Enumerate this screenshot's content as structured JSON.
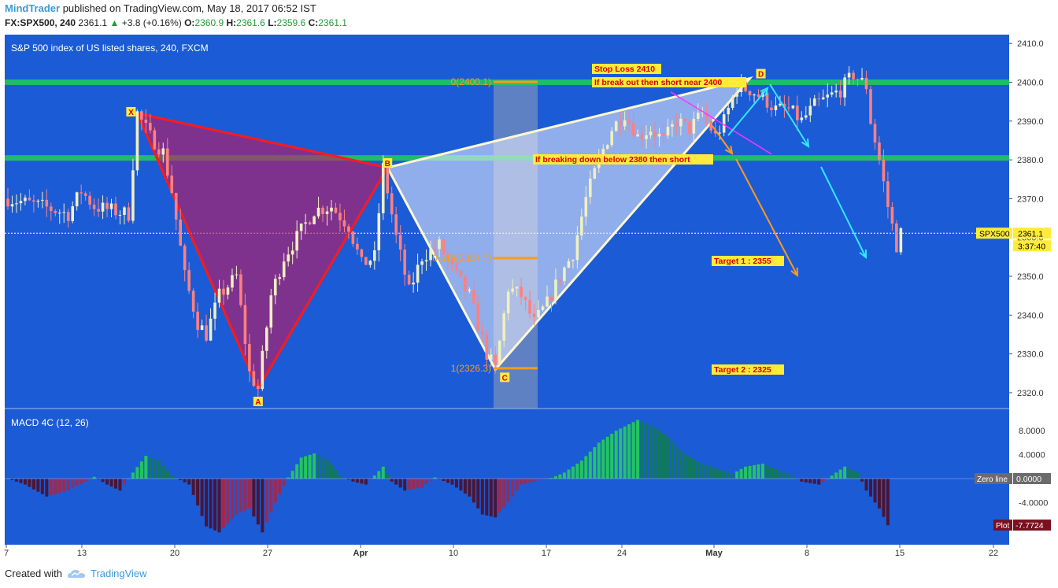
{
  "header": {
    "author": "MindTrader",
    "published_text": "published on TradingView.com, May 18, 2017 06:52 IST",
    "symbol": "FX:SPX500, 240",
    "last": "2361.1",
    "change": "+3.8 (+0.16%)",
    "open_label": "O:",
    "open": "2360.9",
    "high_label": "H:",
    "high": "2361.6",
    "low_label": "L:",
    "low": "2359.6",
    "close_label": "C:",
    "close": "2361.1"
  },
  "colors": {
    "background": "#1c5bd6",
    "candle_up": "#f0f0c0",
    "candle_down": "#ff8080",
    "triangle_red": "#ff1a1a",
    "triangle_white": "#e8eef8",
    "green_level": "#22c55e",
    "orange": "#ff9a1a",
    "cyan": "#33e6ff",
    "magenta": "#ff33ff",
    "macd_pos": "#22c55e",
    "macd_neg": "#8b1e3f"
  },
  "chart_data": [
    {
      "type": "candlestick",
      "title": "S&P 500 index of US listed shares, 240, FXCM",
      "x_ticks": [
        "7",
        "13",
        "20",
        "27",
        "Apr",
        "10",
        "17",
        "24",
        "May",
        "8",
        "15",
        "22"
      ],
      "y_ticks": [
        "2320.0",
        "2330.0",
        "2340.0",
        "2350.0",
        "2360.0",
        "2370.0",
        "2380.0",
        "2390.0",
        "2400.0",
        "2410.0"
      ],
      "ylim": [
        2316,
        2418
      ],
      "price_path": [
        [
          0,
          2370
        ],
        [
          8,
          2368
        ],
        [
          14,
          2366
        ],
        [
          17,
          2372
        ],
        [
          20,
          2368
        ],
        [
          28,
          2366
        ],
        [
          30,
          2392
        ],
        [
          33,
          2386
        ],
        [
          36,
          2382
        ],
        [
          38,
          2372
        ],
        [
          41,
          2350
        ],
        [
          44,
          2338
        ],
        [
          46,
          2335
        ],
        [
          49,
          2345
        ],
        [
          53,
          2350
        ],
        [
          56,
          2325
        ],
        [
          58,
          2321
        ],
        [
          61,
          2345
        ],
        [
          64,
          2355
        ],
        [
          67,
          2360
        ],
        [
          71,
          2367
        ],
        [
          75,
          2368
        ],
        [
          79,
          2363
        ],
        [
          82,
          2353
        ],
        [
          85,
          2355
        ],
        [
          87,
          2378
        ],
        [
          90,
          2360
        ],
        [
          93,
          2346
        ],
        [
          96,
          2355
        ],
        [
          100,
          2358
        ],
        [
          104,
          2350
        ],
        [
          107,
          2345
        ],
        [
          111,
          2330
        ],
        [
          113,
          2326
        ],
        [
          116,
          2347
        ],
        [
          119,
          2345
        ],
        [
          122,
          2338
        ],
        [
          125,
          2343
        ],
        [
          128,
          2350
        ],
        [
          131,
          2356
        ],
        [
          134,
          2370
        ],
        [
          137,
          2380
        ],
        [
          140,
          2388
        ],
        [
          143,
          2392
        ],
        [
          146,
          2386
        ],
        [
          149,
          2388
        ],
        [
          152,
          2385
        ],
        [
          155,
          2390
        ],
        [
          158,
          2388
        ],
        [
          161,
          2392
        ],
        [
          164,
          2386
        ],
        [
          166,
          2390
        ],
        [
          169,
          2399
        ],
        [
          172,
          2398
        ],
        [
          175,
          2396
        ],
        [
          178,
          2393
        ],
        [
          181,
          2393
        ],
        [
          184,
          2390
        ],
        [
          187,
          2394
        ],
        [
          190,
          2396
        ],
        [
          193,
          2398
        ],
        [
          196,
          2402
        ],
        [
          199,
          2399
        ],
        [
          200,
          2390
        ],
        [
          202,
          2380
        ],
        [
          204,
          2368
        ],
        [
          206,
          2358
        ],
        [
          207,
          2361
        ]
      ],
      "levels": [
        {
          "price": 2400,
          "color": "green"
        },
        {
          "price": 2380.5,
          "color": "green"
        },
        {
          "price": 2361.1,
          "color": "white-dotted",
          "label": "SPX500",
          "value": "2361.1",
          "countdown": "3:37:40"
        }
      ],
      "pattern_points": [
        {
          "label": "X",
          "bar": 30,
          "price": 2392
        },
        {
          "label": "A",
          "bar": 58,
          "price": 2321
        },
        {
          "label": "B",
          "bar": 88,
          "price": 2378
        },
        {
          "label": "C",
          "bar": 113,
          "price": 2326
        },
        {
          "label": "D",
          "bar": 172,
          "price": 2401
        }
      ],
      "fib_labels": [
        {
          "text": "0(2400.1)",
          "price": 2400.1
        },
        {
          "text": "0.618(2354.7)",
          "price": 2354.7
        },
        {
          "text": "1(2326.3)",
          "price": 2326.3
        }
      ],
      "annotations": [
        "Stop Loss 2410",
        "If break out then short near 2400",
        "If breaking down below 2380 then short",
        "Target 1 :  2355",
        "Target 2 :  2325"
      ],
      "price_box": {
        "symbol": "SPX500",
        "value": "2361.1",
        "countdown": "3:37:40"
      }
    },
    {
      "type": "histogram",
      "title": "MACD 4C (12, 26)",
      "y_ticks": [
        "8.0000",
        "4.0000",
        "-4.0000"
      ],
      "ylim": [
        -12,
        11
      ],
      "zero_label": "Zero line",
      "zero_value": "0.0000",
      "plot_label": "Plot",
      "plot_value": "-7.7724",
      "macd_path": [
        [
          0,
          0
        ],
        [
          4,
          -1
        ],
        [
          9,
          -3
        ],
        [
          14,
          -2
        ],
        [
          18,
          -0.5
        ],
        [
          20,
          0.3
        ],
        [
          23,
          -1
        ],
        [
          26,
          -2
        ],
        [
          29,
          1
        ],
        [
          32,
          3.8
        ],
        [
          35,
          3
        ],
        [
          38,
          0.5
        ],
        [
          42,
          -1
        ],
        [
          46,
          -8
        ],
        [
          49,
          -9
        ],
        [
          53,
          -6
        ],
        [
          56,
          -5
        ],
        [
          59,
          -9
        ],
        [
          62,
          -4
        ],
        [
          65,
          0.2
        ],
        [
          68,
          3.5
        ],
        [
          71,
          4.2
        ],
        [
          74,
          3.2
        ],
        [
          77,
          0.5
        ],
        [
          80,
          -0.5
        ],
        [
          83,
          -1
        ],
        [
          87,
          2
        ],
        [
          89,
          -0.5
        ],
        [
          92,
          -2
        ],
        [
          96,
          -1.5
        ],
        [
          99,
          0.2
        ],
        [
          103,
          -1
        ],
        [
          107,
          -3
        ],
        [
          110,
          -6
        ],
        [
          113,
          -6.5
        ],
        [
          116,
          -4
        ],
        [
          119,
          -1
        ],
        [
          122,
          -0.5
        ],
        [
          126,
          0.1
        ],
        [
          129,
          1
        ],
        [
          133,
          3
        ],
        [
          137,
          6
        ],
        [
          141,
          8
        ],
        [
          146,
          9.8
        ],
        [
          149,
          9
        ],
        [
          153,
          7
        ],
        [
          157,
          4
        ],
        [
          161,
          2.5
        ],
        [
          165,
          1.5
        ],
        [
          168,
          0.8
        ],
        [
          171,
          2
        ],
        [
          175,
          2.5
        ],
        [
          178,
          1.5
        ],
        [
          181,
          0.8
        ],
        [
          184,
          -0.5
        ],
        [
          188,
          -1
        ],
        [
          191,
          0.5
        ],
        [
          194,
          2
        ],
        [
          197,
          1
        ],
        [
          199,
          -2
        ],
        [
          202,
          -5
        ],
        [
          204,
          -7.8
        ]
      ]
    }
  ],
  "footer": {
    "created_with": "Created with",
    "brand": "TradingView"
  }
}
